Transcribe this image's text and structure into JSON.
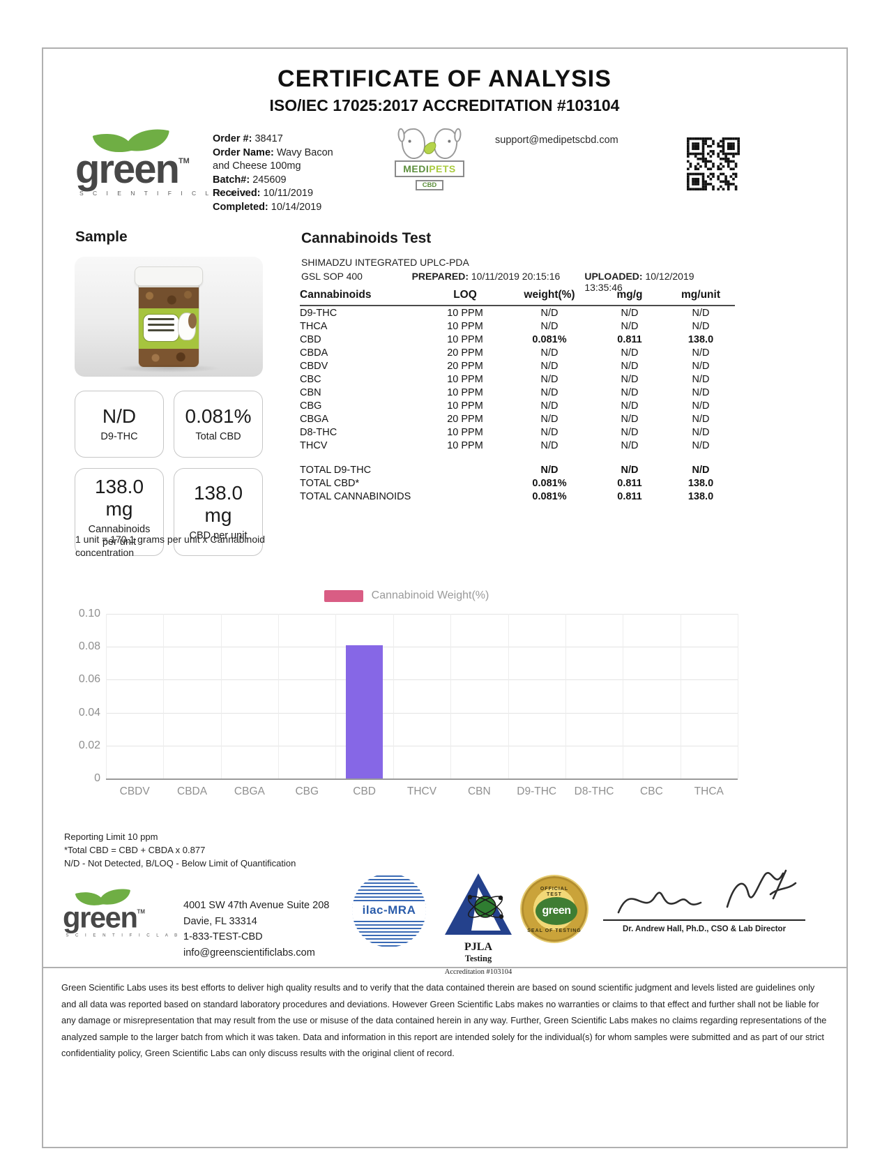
{
  "header": {
    "title": "CERTIFICATE OF ANALYSIS",
    "subtitle": "ISO/IEC 17025:2017 ACCREDITATION #103104",
    "support_email": "support@medipetscbd.com",
    "gsl_logo": {
      "word": "green",
      "tm": "TM",
      "sub": "S C I E N T I F I C   L A B S"
    },
    "medipets_logo": {
      "medi": "MEDI",
      "pets": "PETS",
      "cbd": "CBD"
    },
    "order_fields": [
      {
        "label": "Order #:",
        "value": " 38417"
      },
      {
        "label": "Order Name:",
        "value": " Wavy Bacon and Cheese 100mg"
      },
      {
        "label": "Batch#:",
        "value": " 245609"
      },
      {
        "label": "Received:",
        "value": " 10/11/2019"
      },
      {
        "label": "Completed:",
        "value": " 10/14/2019"
      }
    ]
  },
  "sample": {
    "heading": "Sample",
    "stats": [
      {
        "value": "N/D",
        "label": "D9-THC"
      },
      {
        "value": "0.081%",
        "label": "Total CBD"
      },
      {
        "value": "138.0 mg",
        "label": "Cannabinoids per unit"
      },
      {
        "value": "138.0 mg",
        "label": "CBD per unit"
      }
    ],
    "note": "1 unit = 170.1 grams per unit x Cannabinoid concentration"
  },
  "test": {
    "heading": "Cannabinoids Test",
    "instrument": "SHIMADZU INTEGRATED UPLC-PDA",
    "sop": "GSL SOP 400",
    "prepared_label": "PREPARED:",
    "prepared": " 10/11/2019 20:15:16",
    "uploaded_label": "UPLOADED:",
    "uploaded": " 10/12/2019 13:35:46",
    "columns": [
      "Cannabinoids",
      "LOQ",
      "weight(%)",
      "mg/g",
      "mg/unit"
    ],
    "rows": [
      {
        "name": "D9-THC",
        "loq": "10 PPM",
        "weight": "N/D",
        "mgg": "N/D",
        "mgunit": "N/D",
        "bold": false
      },
      {
        "name": "THCA",
        "loq": "10 PPM",
        "weight": "N/D",
        "mgg": "N/D",
        "mgunit": "N/D",
        "bold": false
      },
      {
        "name": "CBD",
        "loq": "10 PPM",
        "weight": "0.081%",
        "mgg": "0.811",
        "mgunit": "138.0",
        "bold": true
      },
      {
        "name": "CBDA",
        "loq": "20 PPM",
        "weight": "N/D",
        "mgg": "N/D",
        "mgunit": "N/D",
        "bold": false
      },
      {
        "name": "CBDV",
        "loq": "20 PPM",
        "weight": "N/D",
        "mgg": "N/D",
        "mgunit": "N/D",
        "bold": false
      },
      {
        "name": "CBC",
        "loq": "10 PPM",
        "weight": "N/D",
        "mgg": "N/D",
        "mgunit": "N/D",
        "bold": false
      },
      {
        "name": "CBN",
        "loq": "10 PPM",
        "weight": "N/D",
        "mgg": "N/D",
        "mgunit": "N/D",
        "bold": false
      },
      {
        "name": "CBG",
        "loq": "10 PPM",
        "weight": "N/D",
        "mgg": "N/D",
        "mgunit": "N/D",
        "bold": false
      },
      {
        "name": "CBGA",
        "loq": "20 PPM",
        "weight": "N/D",
        "mgg": "N/D",
        "mgunit": "N/D",
        "bold": false
      },
      {
        "name": "D8-THC",
        "loq": "10 PPM",
        "weight": "N/D",
        "mgg": "N/D",
        "mgunit": "N/D",
        "bold": false
      },
      {
        "name": "THCV",
        "loq": "10 PPM",
        "weight": "N/D",
        "mgg": "N/D",
        "mgunit": "N/D",
        "bold": false
      }
    ],
    "totals": [
      {
        "name": "TOTAL D9-THC",
        "weight": "N/D",
        "mgg": "N/D",
        "mgunit": "N/D"
      },
      {
        "name": "TOTAL CBD*",
        "weight": "0.081%",
        "mgg": "0.811",
        "mgunit": "138.0"
      },
      {
        "name": "TOTAL CANNABINOIDS",
        "weight": "0.081%",
        "mgg": "0.811",
        "mgunit": "138.0"
      }
    ]
  },
  "chart_data": {
    "type": "bar",
    "title": "",
    "legend": "Cannabinoid Weight(%)",
    "legend_color": "#d95d84",
    "bar_color": "#8667e6",
    "categories": [
      "CBDV",
      "CBDA",
      "CBGA",
      "CBG",
      "CBD",
      "THCV",
      "CBN",
      "D9-THC",
      "D8-THC",
      "CBC",
      "THCA"
    ],
    "values": [
      0,
      0,
      0,
      0,
      0.081,
      0,
      0,
      0,
      0,
      0,
      0
    ],
    "xlabel": "",
    "ylabel": "",
    "ylim": [
      0,
      0.1
    ],
    "yticks": [
      "0.10",
      "0.08",
      "0.06",
      "0.04",
      "0.02",
      "0"
    ],
    "grid": true,
    "legend_position": "top-center"
  },
  "footnotes": [
    "Reporting Limit 10 ppm",
    "*Total CBD = CBD + CBDA x 0.877",
    "N/D - Not Detected, B/LOQ - Below Limit of Quantification"
  ],
  "footer": {
    "address_line1": "4001 SW 47th Avenue Suite 208",
    "address_line2": "Davie, FL 33314",
    "phone": "1-833-TEST-CBD",
    "email": "info@greenscientificlabs.com",
    "ilac": "ilac-MRA",
    "pjla_name": "PJLA",
    "pjla_sub": "Testing",
    "pjla_accreditation": "Accreditation #103104",
    "seal_top": "OFFICIAL\nTEST",
    "seal_word": "green",
    "seal_bottom": "SEAL OF TESTING",
    "signer": "Dr. Andrew Hall, Ph.D., CSO & Lab Director",
    "disclaimer": "Green Scientific Labs uses its best efforts to deliver high quality results and to verify that the data contained therein are based on sound scientific judgment and levels listed are guidelines only and all data was reported based on standard laboratory procedures and deviations. However Green Scientific Labs makes no warranties or claims to that effect and further shall not be liable for any damage or misrepresentation that may result from the use or misuse of the data contained herein in any way. Further, Green Scientific Labs makes no claims regarding representations of the analyzed sample to the larger batch from which it was taken. Data and information in this report are intended solely for the individual(s) for whom samples were submitted and as part of our strict confidentiality policy, Green Scientific Labs can only discuss results with the original client of record."
  }
}
